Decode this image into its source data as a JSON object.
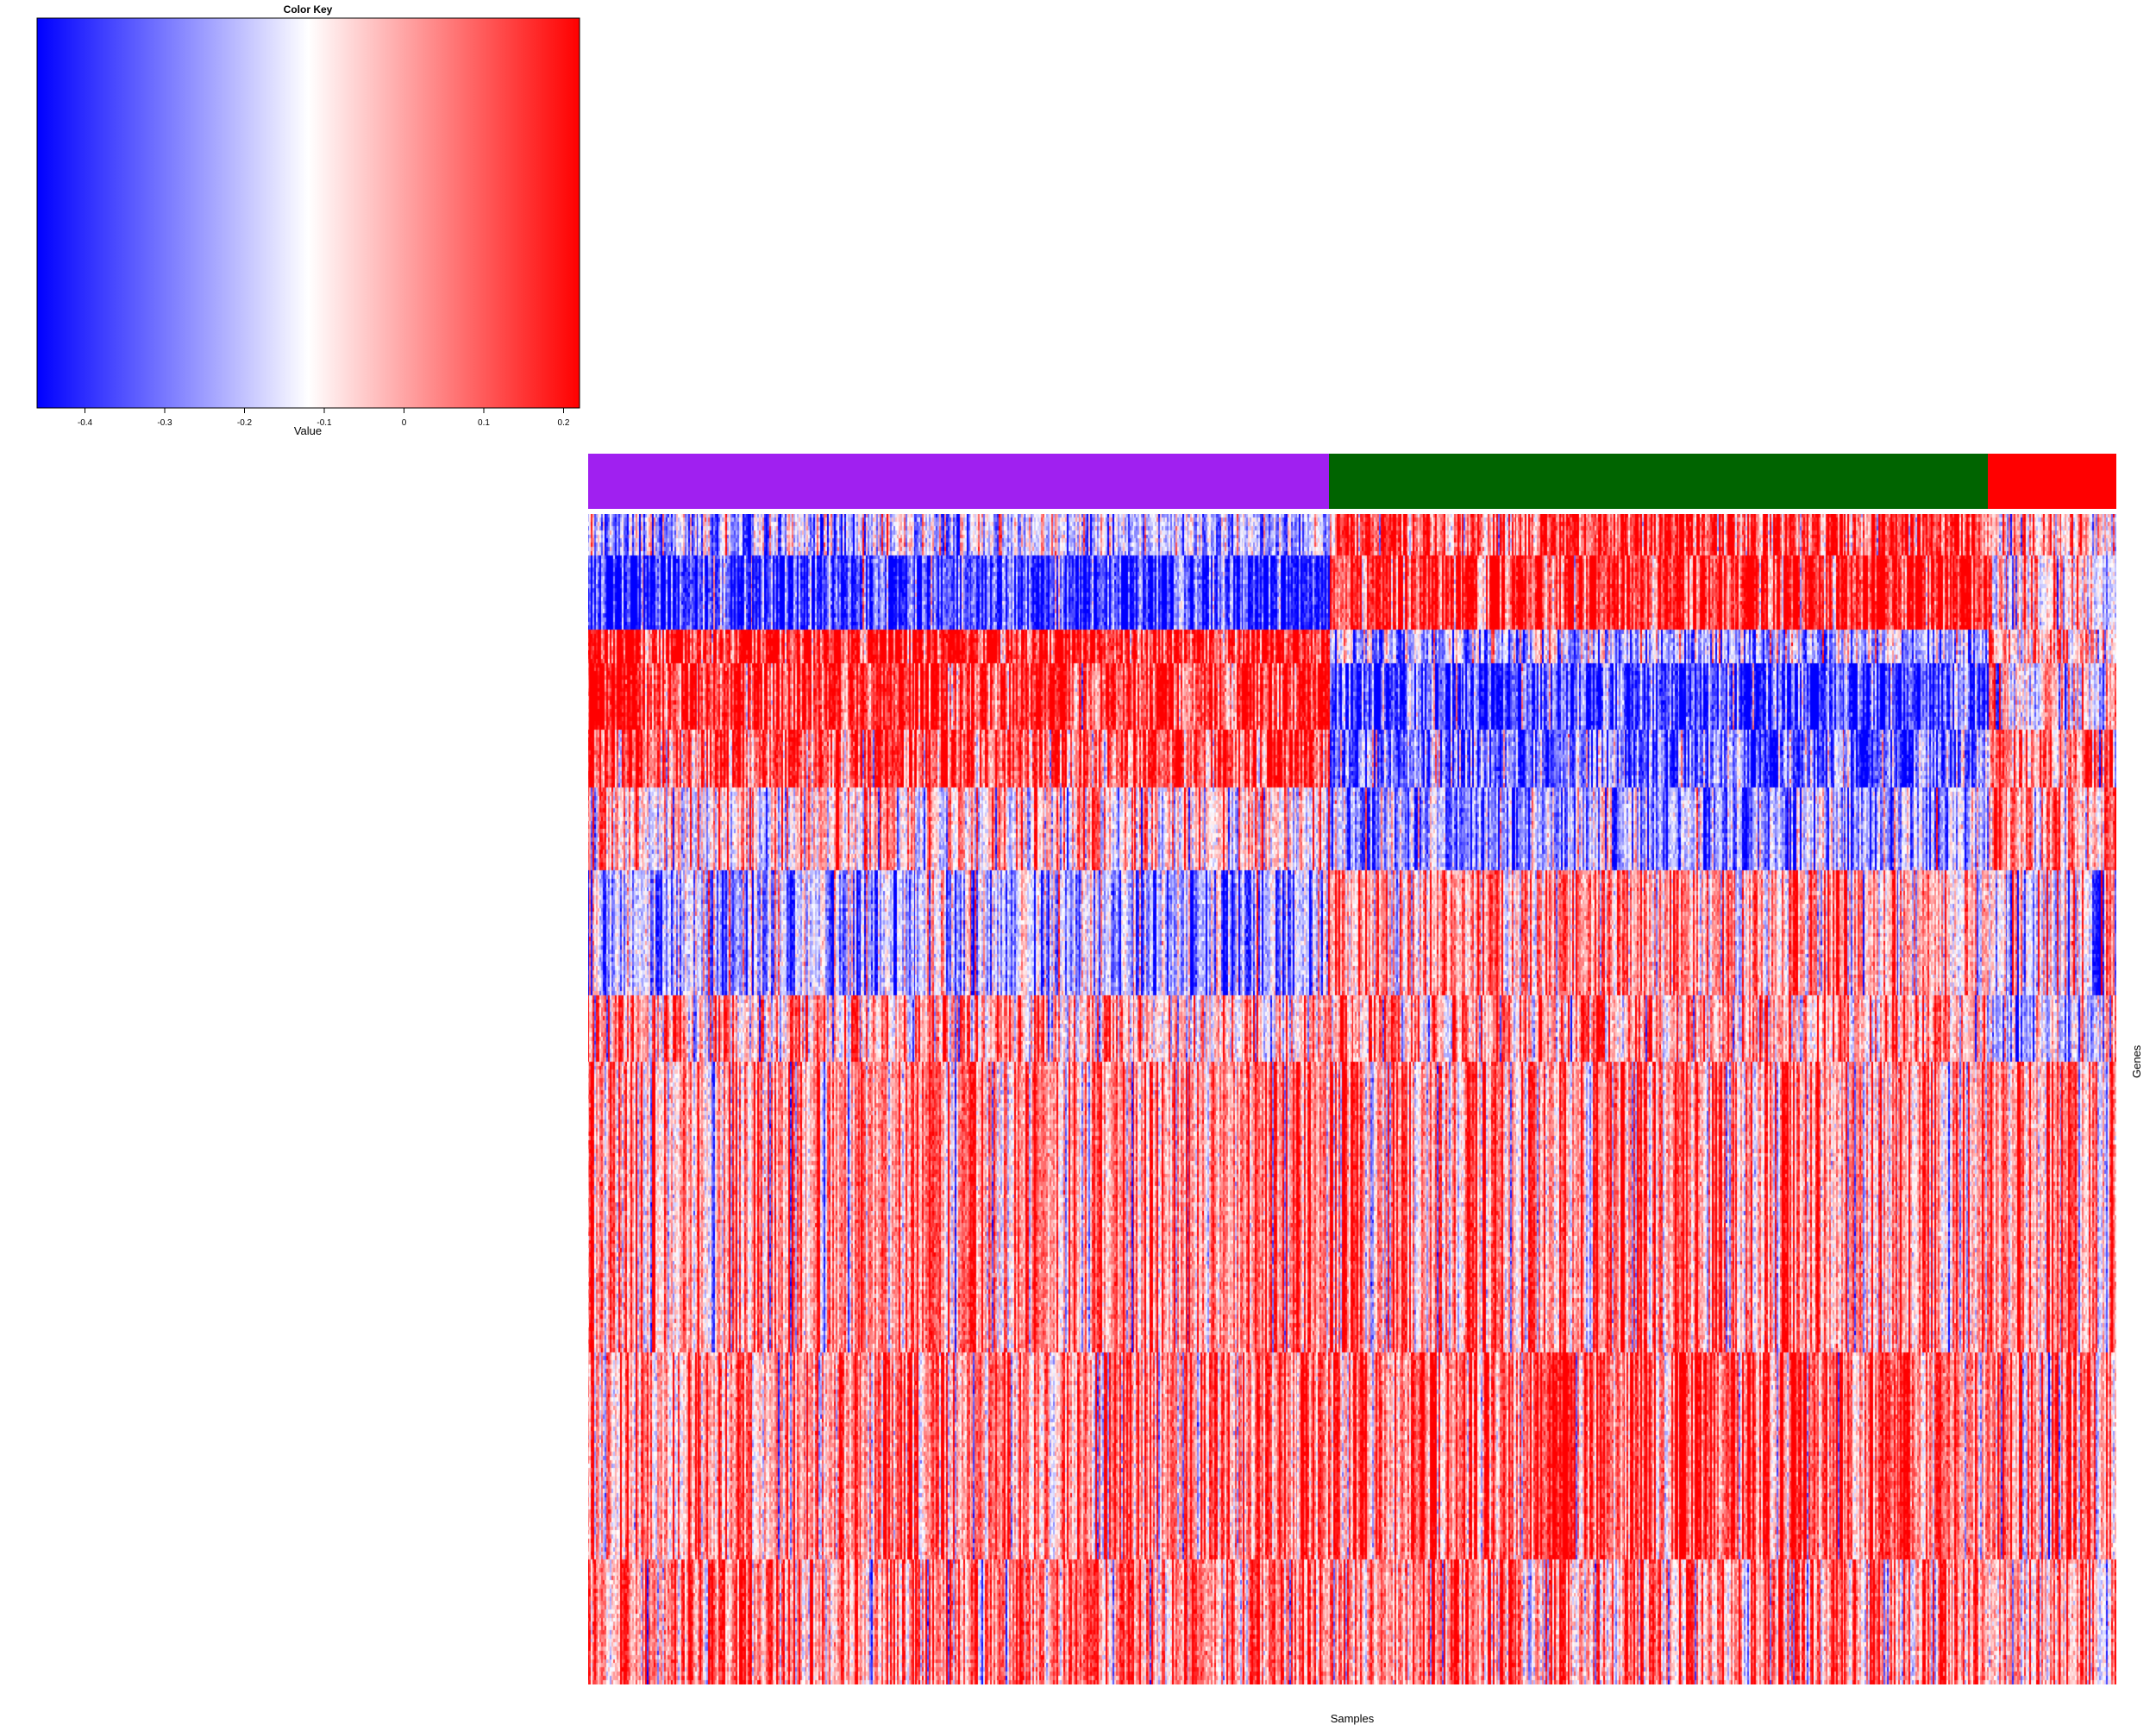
{
  "chart_data": {
    "type": "heatmap",
    "xlabel": "Samples",
    "ylabel": "Genes",
    "color_key": {
      "title": "Color Key",
      "xlabel": "Value",
      "range": [
        -0.46,
        0.22
      ],
      "ticks": [
        "-0.4",
        "-0.3",
        "-0.2",
        "-0.1",
        "0",
        "0.1",
        "0.2"
      ],
      "tick_values": [
        -0.4,
        -0.3,
        -0.2,
        -0.1,
        0,
        0.1,
        0.2
      ],
      "colors": {
        "low": "#0000ff",
        "mid": "#ffffff",
        "mid_value": -0.12,
        "high": "#ff0000"
      }
    },
    "sample_groups": [
      {
        "color": "#a020f0",
        "fraction": 0.485
      },
      {
        "color": "#006400",
        "fraction": 0.431
      },
      {
        "color": "#ff0000",
        "fraction": 0.084
      }
    ],
    "n_samples": 900,
    "gene_blocks": [
      {
        "rows": 10,
        "means": [
          -0.2,
          0.12,
          -0.05
        ]
      },
      {
        "rows": 18,
        "means": [
          -0.4,
          0.18,
          -0.1
        ]
      },
      {
        "rows": 8,
        "means": [
          0.2,
          -0.2,
          -0.05
        ]
      },
      {
        "rows": 16,
        "means": [
          0.18,
          -0.38,
          -0.12
        ]
      },
      {
        "rows": 14,
        "means": [
          0.1,
          -0.3,
          0.05
        ]
      },
      {
        "rows": 20,
        "means": [
          -0.05,
          -0.25,
          0.02
        ]
      },
      {
        "rows": 30,
        "means": [
          -0.22,
          0.0,
          -0.15
        ]
      },
      {
        "rows": 16,
        "means": [
          -0.02,
          0.02,
          -0.2
        ]
      },
      {
        "rows": 70,
        "means": [
          0.02,
          0.03,
          0.02
        ]
      },
      {
        "rows": 50,
        "means": [
          0.04,
          0.08,
          0.03
        ]
      },
      {
        "rows": 30,
        "means": [
          0.05,
          0.02,
          0.02
        ]
      }
    ]
  }
}
